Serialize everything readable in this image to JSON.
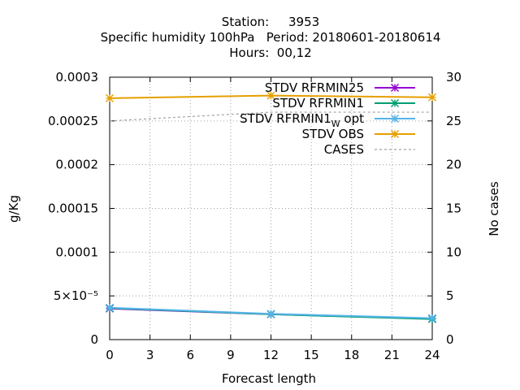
{
  "chart_data": {
    "type": "line",
    "title_lines": [
      "Station:     3953",
      "Specific humidity 100hPa   Period: 20180601-20180614",
      "Hours:  00,12"
    ],
    "xlabel": "Forecast length",
    "ylabel": "g/Kg",
    "y2label": "No cases",
    "xlim": [
      0,
      24
    ],
    "ylim": [
      0,
      0.0003
    ],
    "y2lim": [
      0,
      30
    ],
    "xticks": [
      0,
      3,
      6,
      9,
      12,
      15,
      18,
      21,
      24
    ],
    "yticks": [
      0,
      5e-05,
      0.0001,
      0.00015,
      0.0002,
      0.00025,
      0.0003
    ],
    "ytick_labels": [
      "0",
      "5×10⁻⁵",
      "0.0001",
      "0.00015",
      "0.0002",
      "0.00025",
      "0.0003"
    ],
    "y2ticks": [
      0,
      5,
      10,
      15,
      20,
      25,
      30
    ],
    "y2tick_labels": [
      "0",
      "5",
      "10",
      "15",
      "20",
      "25",
      "30"
    ],
    "grid": true,
    "legend_position": "top-right",
    "x": [
      0,
      12,
      24
    ],
    "series": [
      {
        "name": "STDV RFRMIN25",
        "axis": "y",
        "color": "#9400d3",
        "dash": false,
        "marker": true,
        "values": [
          3.55e-05,
          2.9e-05,
          2.4e-05
        ]
      },
      {
        "name": "STDV RFRMIN1",
        "axis": "y",
        "color": "#009e73",
        "dash": false,
        "marker": true,
        "values": [
          3.6e-05,
          2.9e-05,
          2.35e-05
        ]
      },
      {
        "name": "STDV RFRMIN1_W_opt",
        "name_parts": [
          "STDV RFRMIN1",
          "W",
          "opt"
        ],
        "axis": "y",
        "color": "#56b4e9",
        "dash": false,
        "marker": true,
        "values": [
          3.65e-05,
          2.95e-05,
          2.45e-05
        ]
      },
      {
        "name": "STDV OBS",
        "axis": "y",
        "color": "#e69f00",
        "dash": false,
        "marker": true,
        "values": [
          0.000276,
          0.000279,
          0.000277
        ]
      },
      {
        "name": "CASES",
        "axis": "y2",
        "color": "#a0a0a0",
        "dash": true,
        "marker": false,
        "values": [
          25,
          26,
          26
        ]
      }
    ]
  }
}
